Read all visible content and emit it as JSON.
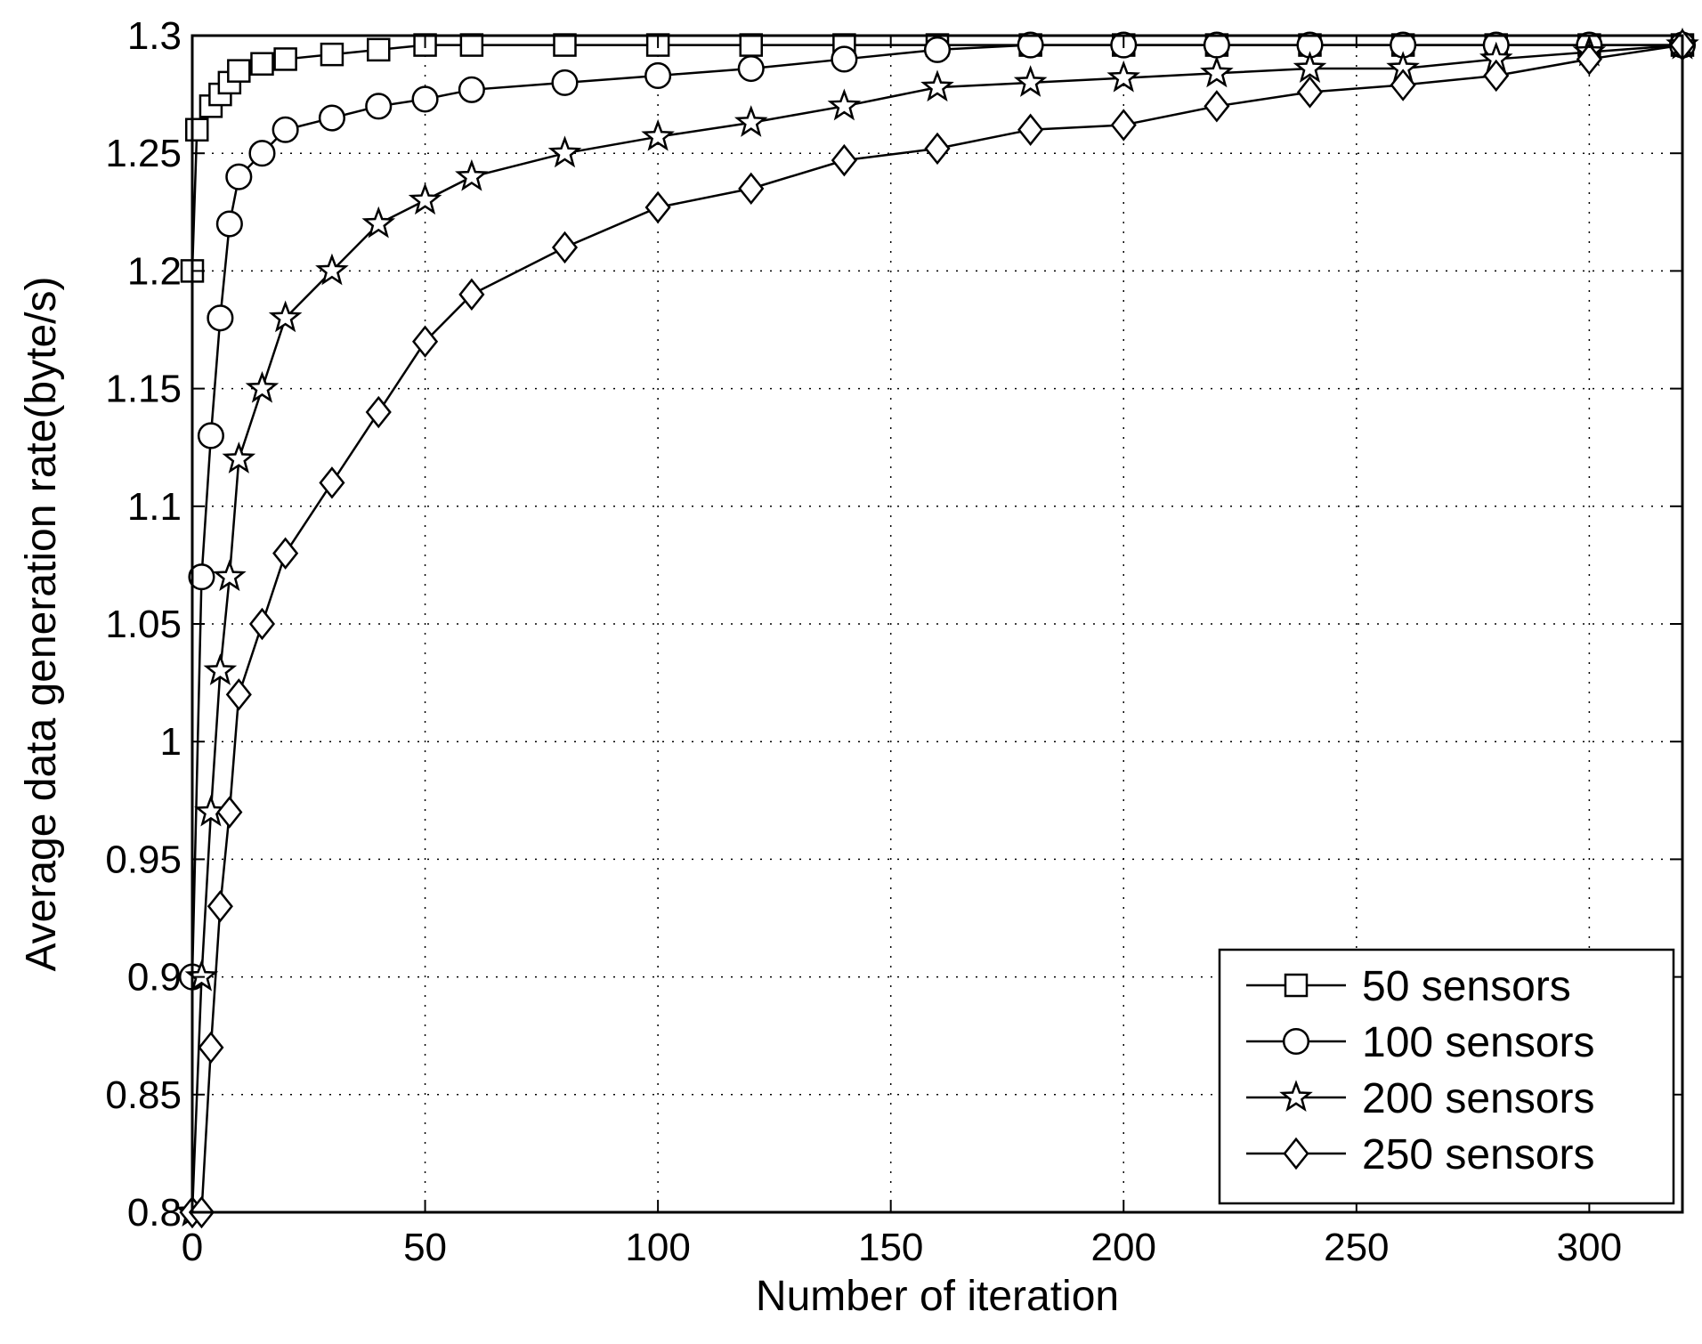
{
  "chart_data": {
    "type": "line",
    "title": "",
    "xlabel": "Number of iteration",
    "ylabel": "Average data generation rate(byte/s)",
    "xlim": [
      0,
      320
    ],
    "ylim": [
      0.8,
      1.3
    ],
    "xticks": [
      0,
      50,
      100,
      150,
      200,
      250,
      300
    ],
    "yticks": [
      0.8,
      0.85,
      0.9,
      0.95,
      1,
      1.05,
      1.1,
      1.15,
      1.2,
      1.25,
      1.3
    ],
    "x_tick_labels": [
      "0",
      "50",
      "100",
      "150",
      "200",
      "250",
      "300"
    ],
    "y_tick_labels": [
      "0.8",
      "0.85",
      "0.9",
      "0.95",
      "1",
      "1.05",
      "1.1",
      "1.15",
      "1.2",
      "1.25",
      "1.3"
    ],
    "grid": true,
    "legend_position": "bottom-right",
    "series": [
      {
        "name": "50 sensors",
        "marker": "square",
        "x": [
          0,
          1,
          4,
          6,
          8,
          10,
          15,
          20,
          30,
          40,
          50,
          60,
          80,
          100,
          120,
          140,
          160,
          180,
          200,
          220,
          240,
          260,
          280,
          300,
          320
        ],
        "y": [
          1.2,
          1.26,
          1.27,
          1.275,
          1.28,
          1.285,
          1.288,
          1.29,
          1.292,
          1.294,
          1.296,
          1.296,
          1.296,
          1.296,
          1.296,
          1.296,
          1.296,
          1.296,
          1.296,
          1.296,
          1.296,
          1.296,
          1.296,
          1.296,
          1.296
        ]
      },
      {
        "name": "100 sensors",
        "marker": "circle",
        "x": [
          0,
          2,
          4,
          6,
          8,
          10,
          15,
          20,
          30,
          40,
          50,
          60,
          80,
          100,
          120,
          140,
          160,
          180,
          200,
          220,
          240,
          260,
          280,
          300,
          320
        ],
        "y": [
          0.9,
          1.07,
          1.13,
          1.18,
          1.22,
          1.24,
          1.25,
          1.26,
          1.265,
          1.27,
          1.273,
          1.277,
          1.28,
          1.283,
          1.286,
          1.29,
          1.294,
          1.296,
          1.296,
          1.296,
          1.296,
          1.296,
          1.296,
          1.296,
          1.296
        ]
      },
      {
        "name": "200 sensors",
        "marker": "star",
        "x": [
          0,
          2,
          4,
          6,
          8,
          10,
          15,
          20,
          30,
          40,
          50,
          60,
          80,
          100,
          120,
          140,
          160,
          180,
          200,
          220,
          240,
          260,
          280,
          300,
          320
        ],
        "y": [
          0.8,
          0.9,
          0.97,
          1.03,
          1.07,
          1.12,
          1.15,
          1.18,
          1.2,
          1.22,
          1.23,
          1.24,
          1.25,
          1.257,
          1.263,
          1.27,
          1.278,
          1.28,
          1.282,
          1.284,
          1.286,
          1.286,
          1.29,
          1.293,
          1.296
        ]
      },
      {
        "name": "250 sensors",
        "marker": "diamond",
        "x": [
          0,
          2,
          4,
          6,
          8,
          10,
          15,
          20,
          30,
          40,
          50,
          60,
          80,
          100,
          120,
          140,
          160,
          180,
          200,
          220,
          240,
          260,
          280,
          300,
          320
        ],
        "y": [
          0.8,
          0.8,
          0.87,
          0.93,
          0.97,
          1.02,
          1.05,
          1.08,
          1.11,
          1.14,
          1.17,
          1.19,
          1.21,
          1.227,
          1.235,
          1.247,
          1.252,
          1.26,
          1.262,
          1.27,
          1.276,
          1.279,
          1.283,
          1.29,
          1.296
        ]
      }
    ]
  }
}
